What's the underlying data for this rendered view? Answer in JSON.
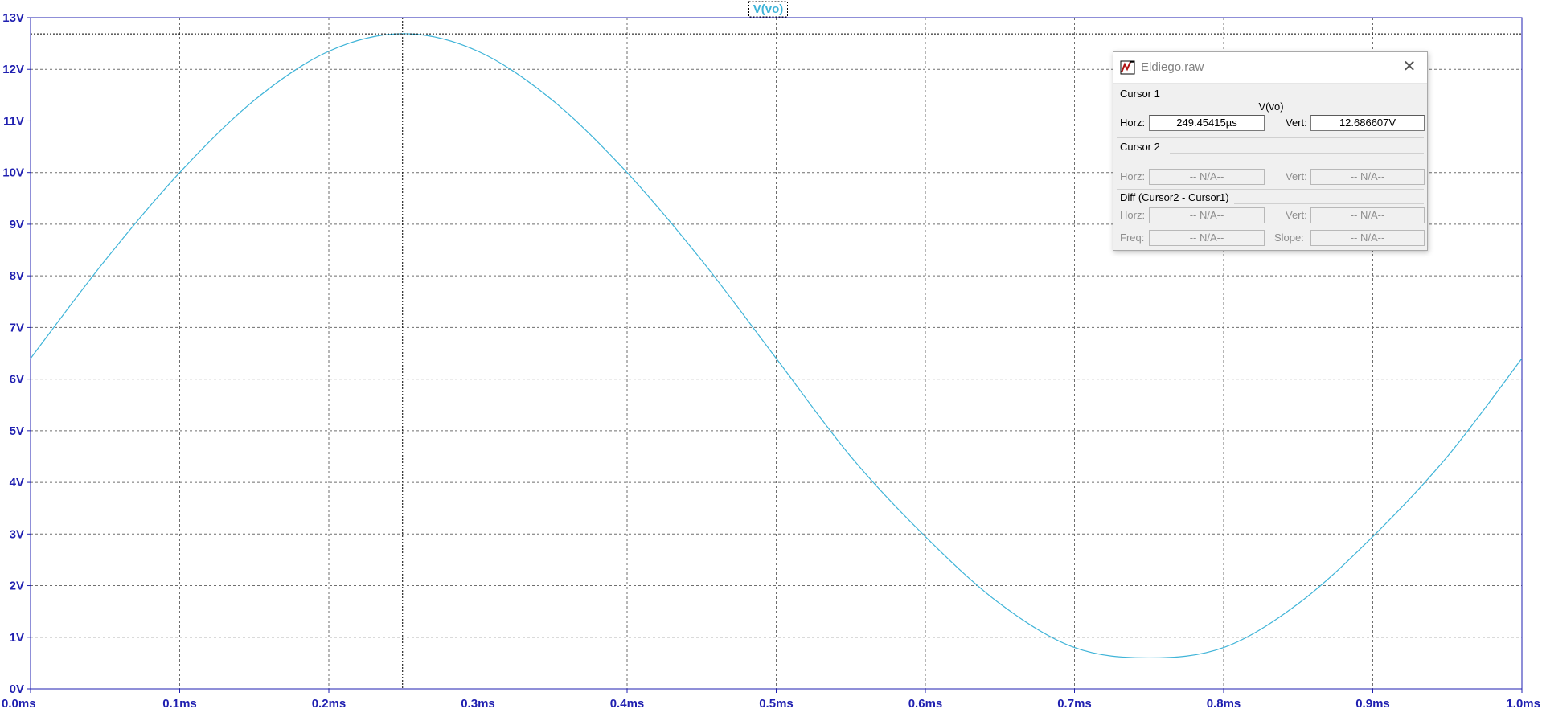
{
  "trace_label": "V(vo)",
  "colors": {
    "axis": "#1f1fb0",
    "trace": "#3fb4d8",
    "grid": "#6e6e6e"
  },
  "chart_data": {
    "type": "line",
    "xlabel": "",
    "ylabel": "",
    "xlim": [
      0,
      1.0
    ],
    "ylim": [
      0,
      13
    ],
    "x_ticks": [
      "0.0ms",
      "0.1ms",
      "0.2ms",
      "0.3ms",
      "0.4ms",
      "0.5ms",
      "0.6ms",
      "0.7ms",
      "0.8ms",
      "0.9ms",
      "1.0ms"
    ],
    "y_ticks": [
      "0V",
      "1V",
      "2V",
      "3V",
      "4V",
      "5V",
      "6V",
      "7V",
      "8V",
      "9V",
      "10V",
      "11V",
      "12V",
      "13V"
    ],
    "grid": true,
    "series": [
      {
        "name": "V(vo)",
        "x": [
          0.0,
          0.05,
          0.1,
          0.15,
          0.2,
          0.25,
          0.3,
          0.35,
          0.4,
          0.45,
          0.5,
          0.55,
          0.6,
          0.65,
          0.7,
          0.75,
          0.8,
          0.85,
          0.9,
          0.95,
          1.0
        ],
        "y": [
          6.4,
          8.3,
          10.0,
          11.4,
          12.35,
          12.69,
          12.35,
          11.4,
          10.0,
          8.3,
          6.4,
          4.5,
          2.95,
          1.65,
          0.8,
          0.6,
          0.8,
          1.65,
          2.95,
          4.5,
          6.4
        ]
      }
    ],
    "cursor_x": 0.24945415,
    "cursor_y": 12.686607
  },
  "dialog": {
    "title": "Eldiego.raw",
    "cursor1": {
      "heading": "Cursor 1",
      "trace": "V(vo)",
      "horz_label": "Horz:",
      "horz_value": "249.45415µs",
      "vert_label": "Vert:",
      "vert_value": "12.686607V"
    },
    "cursor2": {
      "heading": "Cursor 2",
      "horz_label": "Horz:",
      "horz_value": "-- N/A--",
      "vert_label": "Vert:",
      "vert_value": "-- N/A--"
    },
    "diff": {
      "heading": "Diff (Cursor2 - Cursor1)",
      "horz_label": "Horz:",
      "horz_value": "-- N/A--",
      "vert_label": "Vert:",
      "vert_value": "-- N/A--",
      "freq_label": "Freq:",
      "freq_value": "-- N/A--",
      "slope_label": "Slope:",
      "slope_value": "-- N/A--"
    }
  }
}
